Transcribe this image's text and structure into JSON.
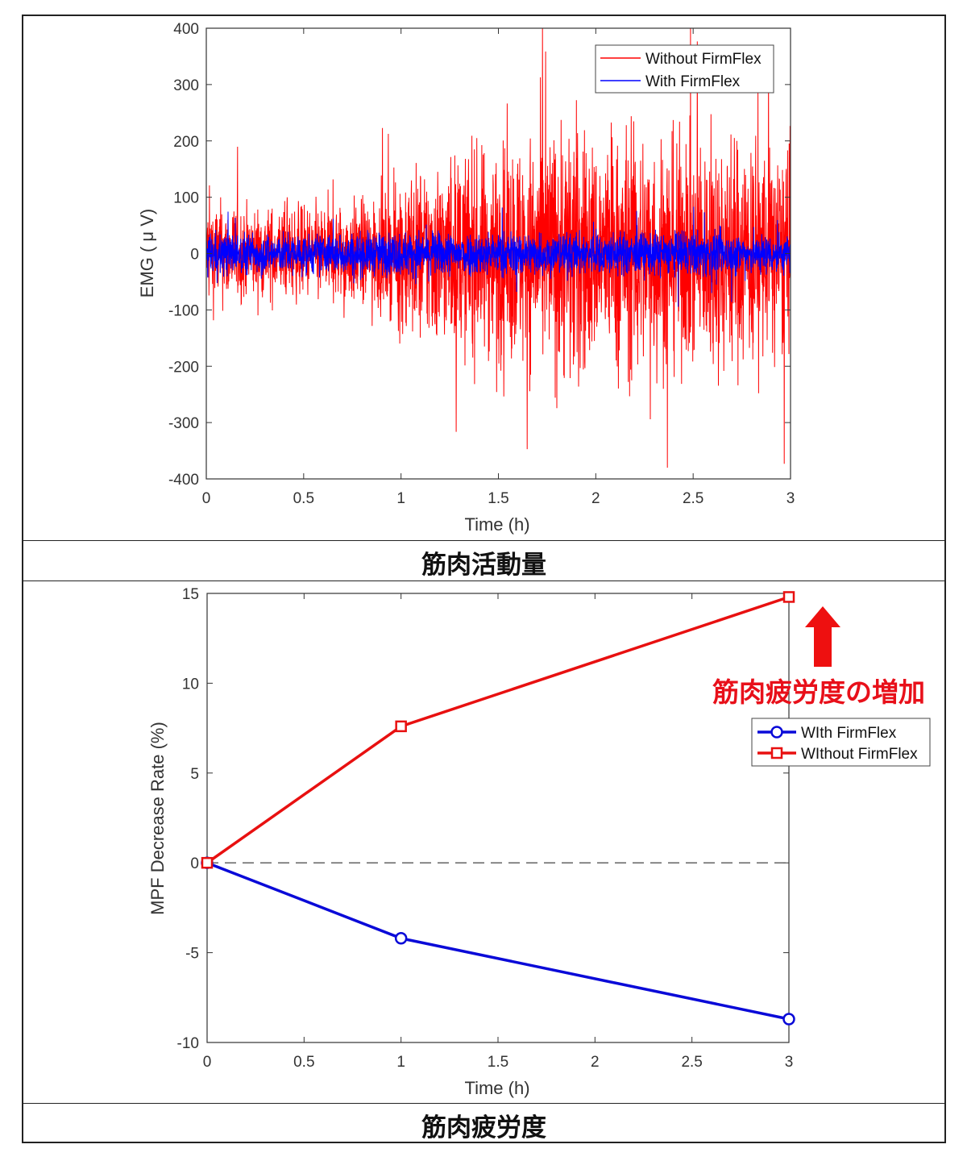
{
  "chart_data": [
    {
      "type": "line",
      "chart": "emg",
      "title": "",
      "xlabel": "Time (h)",
      "ylabel": "EMG ( μ V)",
      "xlim": [
        0,
        3
      ],
      "ylim": [
        -400,
        400
      ],
      "xticks": [
        "0",
        "0.5",
        "1",
        "1.5",
        "2",
        "2.5",
        "3"
      ],
      "yticks": [
        "400",
        "300",
        "200",
        "100",
        "0",
        "-100",
        "-200",
        "-300",
        "-400"
      ],
      "legend_position": "top-right",
      "series": [
        {
          "name": "Without FirmFlex",
          "color": "#ff0000",
          "envelope_time_h": [
            0,
            0.25,
            0.5,
            0.75,
            0.95,
            1.0,
            1.25,
            1.5,
            1.75,
            1.9,
            2.0,
            2.25,
            2.5,
            2.75,
            3.0
          ],
          "envelope_uV": [
            110,
            90,
            95,
            105,
            115,
            170,
            190,
            210,
            250,
            280,
            220,
            250,
            220,
            240,
            200
          ]
        },
        {
          "name": "With FirmFlex",
          "color": "#0000ff",
          "envelope_time_h": [
            0,
            0.5,
            1.0,
            1.5,
            2.0,
            2.5,
            3.0
          ],
          "envelope_uV": [
            45,
            40,
            45,
            45,
            42,
            45,
            40
          ]
        }
      ]
    },
    {
      "type": "line",
      "chart": "mpf",
      "title": "",
      "xlabel": "Time (h)",
      "ylabel": "MPF Decrease Rate (%)",
      "xlim": [
        0,
        3
      ],
      "ylim": [
        -10,
        15
      ],
      "xticks": [
        "0",
        "0.5",
        "1",
        "1.5",
        "2",
        "2.5",
        "3"
      ],
      "yticks": [
        "15",
        "10",
        "5",
        "0",
        "-5",
        "-10"
      ],
      "legend_position": "right",
      "x": [
        0,
        1,
        3
      ],
      "series": [
        {
          "name": "WIth FirmFlex",
          "color": "#0a0ad8",
          "marker": "circle",
          "values": [
            0,
            -4.2,
            -8.7
          ]
        },
        {
          "name": "WIthout FirmFlex",
          "color": "#e81010",
          "marker": "square",
          "values": [
            0,
            7.6,
            14.8
          ]
        }
      ]
    }
  ],
  "captions": {
    "top": "筋肉活動量",
    "bottom": "筋肉疲労度"
  },
  "annotation": {
    "text": "筋肉疲労度の増加",
    "arrow": "up-arrow",
    "color": "#e8101a"
  }
}
